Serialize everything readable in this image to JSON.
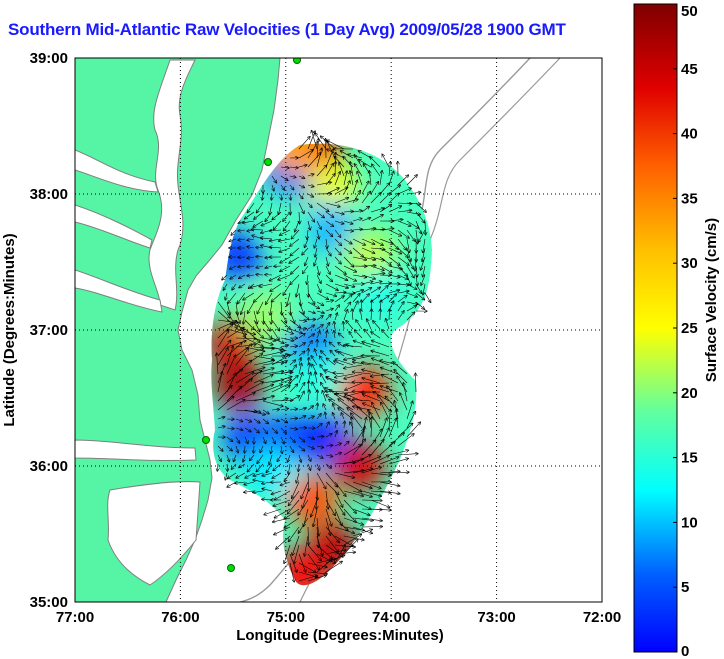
{
  "chart_data": {
    "type": "heatmap",
    "title": "Southern Mid-Atlantic Raw Velocities (1 Day Avg) 2009/05/28 1900 GMT",
    "xlabel": "Longitude (Degrees:Minutes)",
    "ylabel": "Latitude (Degrees:Minutes)",
    "colorbar_label": "Surface Velocity (cm/s)",
    "xlim": [
      -77,
      -72
    ],
    "ylim": [
      35,
      39
    ],
    "x_ticks": [
      {
        "value": -77,
        "label": "77:00"
      },
      {
        "value": -76,
        "label": "76:00"
      },
      {
        "value": -75,
        "label": "75:00"
      },
      {
        "value": -74,
        "label": "74:00"
      },
      {
        "value": -73,
        "label": "73:00"
      },
      {
        "value": -72,
        "label": "72:00"
      }
    ],
    "y_ticks": [
      {
        "value": 35,
        "label": "35:00"
      },
      {
        "value": 36,
        "label": "36:00"
      },
      {
        "value": 37,
        "label": "37:00"
      },
      {
        "value": 38,
        "label": "38:00"
      },
      {
        "value": 39,
        "label": "39:00"
      }
    ],
    "colorbar": {
      "range": [
        0,
        50
      ],
      "ticks": [
        0,
        5,
        10,
        15,
        20,
        25,
        30,
        35,
        40,
        45,
        50
      ],
      "colormap": "jet"
    },
    "grid": true,
    "land_color": "#55f5a5",
    "coast_color": "#808080",
    "velocity_regions": [
      {
        "lon": -74.92,
        "lat": 38.1,
        "speed": 6
      },
      {
        "lon": -75.0,
        "lat": 38.2,
        "speed": 12
      },
      {
        "lon": -74.7,
        "lat": 38.3,
        "speed": 44
      },
      {
        "lon": -74.95,
        "lat": 38.35,
        "speed": 36
      },
      {
        "lon": -74.55,
        "lat": 38.05,
        "speed": 30
      },
      {
        "lon": -75.45,
        "lat": 37.55,
        "speed": 9
      },
      {
        "lon": -74.6,
        "lat": 37.75,
        "speed": 15
      },
      {
        "lon": -75.0,
        "lat": 37.8,
        "speed": 22
      },
      {
        "lon": -74.2,
        "lat": 37.55,
        "speed": 28
      },
      {
        "lon": -74.1,
        "lat": 37.25,
        "speed": 20
      },
      {
        "lon": -75.5,
        "lat": 36.9,
        "speed": 46
      },
      {
        "lon": -75.45,
        "lat": 36.6,
        "speed": 48
      },
      {
        "lon": -75.2,
        "lat": 37.1,
        "speed": 26
      },
      {
        "lon": -74.75,
        "lat": 36.85,
        "speed": 10
      },
      {
        "lon": -74.7,
        "lat": 36.65,
        "speed": 20
      },
      {
        "lon": -74.25,
        "lat": 36.55,
        "speed": 42
      },
      {
        "lon": -75.35,
        "lat": 36.2,
        "speed": 9
      },
      {
        "lon": -74.95,
        "lat": 36.2,
        "speed": 10
      },
      {
        "lon": -74.65,
        "lat": 36.2,
        "speed": 8
      },
      {
        "lon": -75.15,
        "lat": 35.95,
        "speed": 18
      },
      {
        "lon": -74.75,
        "lat": 35.75,
        "speed": 40
      },
      {
        "lon": -74.55,
        "lat": 35.4,
        "speed": 47
      },
      {
        "lon": -74.85,
        "lat": 35.2,
        "speed": 44
      },
      {
        "lon": -74.3,
        "lat": 36.0,
        "speed": 46
      }
    ]
  }
}
